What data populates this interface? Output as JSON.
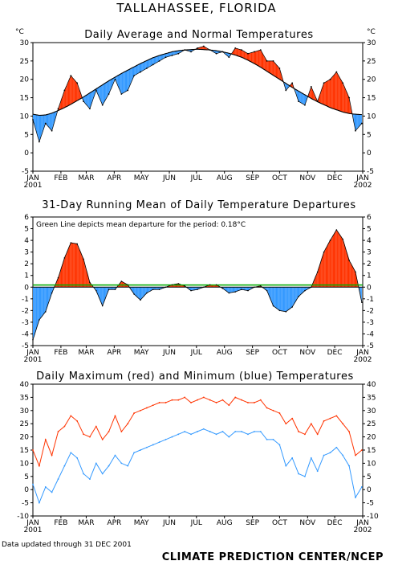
{
  "page": {
    "title": "TALLAHASSEE, FLORIDA",
    "footer_left": "Data updated through 31 DEC 2001",
    "footer_right": "CLIMATE PREDICTION CENTER/NCEP"
  },
  "colors": {
    "warm_fill": "#ff3300",
    "cold_fill": "#3399ff",
    "max_line": "#ff3300",
    "min_line": "#3399ff",
    "mean_line": "#00aa00",
    "normal_line": "#000000"
  },
  "chart_data": [
    {
      "type": "area",
      "title": "Daily Average and Normal Temperatures",
      "ylabel_left": "°C",
      "ylabel_right": "°C",
      "ylim": [
        -5,
        30
      ],
      "yticks": [
        -5,
        0,
        5,
        10,
        15,
        20,
        25,
        30
      ],
      "x_tick_labels": [
        "JAN\n2001",
        "FEB",
        "MAR",
        "APR",
        "MAY",
        "JUN",
        "JUL",
        "AUG",
        "SEP",
        "OCT",
        "NOV",
        "DEC",
        "JAN\n2002"
      ],
      "grid": false,
      "x_day": [
        0,
        7,
        14,
        21,
        28,
        35,
        42,
        49,
        56,
        63,
        70,
        77,
        84,
        91,
        98,
        105,
        112,
        119,
        126,
        133,
        140,
        147,
        154,
        161,
        168,
        175,
        182,
        189,
        196,
        203,
        210,
        217,
        224,
        231,
        238,
        245,
        252,
        259,
        266,
        273,
        280,
        287,
        294,
        301,
        308,
        315,
        322,
        329,
        336,
        343,
        350,
        357,
        364
      ],
      "series": [
        {
          "name": "Daily Average",
          "values": [
            9,
            3,
            8,
            6,
            12,
            17,
            21,
            19,
            14,
            12,
            17,
            13,
            16,
            20,
            16,
            17,
            21,
            22,
            23,
            24,
            25,
            26,
            26.5,
            27,
            28,
            27.5,
            28.5,
            29,
            28,
            27,
            27.5,
            26,
            28.5,
            28,
            27,
            27.5,
            28,
            25,
            25,
            23,
            17,
            19,
            14,
            13,
            18,
            14,
            19,
            20,
            22,
            19,
            15,
            6,
            8
          ]
        },
        {
          "name": "Normal",
          "values": [
            10.5,
            10.2,
            10.3,
            10.8,
            11.5,
            12.3,
            13.2,
            14.2,
            15.2,
            16.3,
            17.4,
            18.5,
            19.6,
            20.6,
            21.6,
            22.5,
            23.4,
            24.3,
            25.1,
            25.9,
            26.5,
            27.0,
            27.5,
            27.8,
            28.0,
            28.1,
            28.2,
            28.1,
            28.0,
            27.8,
            27.5,
            27.1,
            26.6,
            26.0,
            25.2,
            24.3,
            23.3,
            22.2,
            21.1,
            20.0,
            18.9,
            17.8,
            16.8,
            15.8,
            14.8,
            13.9,
            13.1,
            12.3,
            11.7,
            11.1,
            10.7,
            10.5,
            10.4
          ]
        }
      ]
    },
    {
      "type": "area",
      "title": "31-Day Running Mean of Daily Temperature Departures",
      "annotation": "Green Line depicts mean departure for the period: 0.18°C",
      "ylim": [
        -5,
        6
      ],
      "yticks": [
        -5,
        -4,
        -3,
        -2,
        -1,
        0,
        1,
        2,
        3,
        4,
        5,
        6
      ],
      "x_tick_labels": [
        "JAN\n2001",
        "FEB",
        "MAR",
        "APR",
        "MAY",
        "JUN",
        "JUL",
        "AUG",
        "SEP",
        "OCT",
        "NOV",
        "DEC",
        "JAN\n2002"
      ],
      "mean_departure": 0.18,
      "x_day": [
        0,
        7,
        14,
        21,
        28,
        35,
        42,
        49,
        56,
        63,
        70,
        77,
        84,
        91,
        98,
        105,
        112,
        119,
        126,
        133,
        140,
        147,
        154,
        161,
        168,
        175,
        182,
        189,
        196,
        203,
        210,
        217,
        224,
        231,
        238,
        245,
        252,
        259,
        266,
        273,
        280,
        287,
        294,
        301,
        308,
        315,
        322,
        329,
        336,
        343,
        350,
        357,
        364
      ],
      "series": [
        {
          "name": "31-Day Running Mean Departure",
          "values": [
            -4.5,
            -2.8,
            -2.1,
            -0.5,
            0.8,
            2.5,
            3.8,
            3.7,
            2.4,
            0.4,
            -0.3,
            -1.6,
            -0.2,
            -0.2,
            0.5,
            0.2,
            -0.6,
            -1.1,
            -0.5,
            -0.2,
            -0.2,
            0.0,
            0.2,
            0.3,
            0.1,
            -0.3,
            -0.2,
            0.0,
            0.2,
            0.2,
            -0.1,
            -0.5,
            -0.4,
            -0.2,
            -0.3,
            0.0,
            0.1,
            -0.3,
            -1.6,
            -2.0,
            -2.1,
            -1.7,
            -0.8,
            -0.3,
            0.0,
            1.3,
            3.0,
            4.0,
            4.9,
            4.1,
            2.3,
            1.3,
            -1.3
          ]
        }
      ]
    },
    {
      "type": "line",
      "title": "Daily Maximum (red) and Minimum (blue) Temperatures",
      "ylim": [
        -10,
        40
      ],
      "yticks": [
        -10,
        -5,
        0,
        5,
        10,
        15,
        20,
        25,
        30,
        35,
        40
      ],
      "x_tick_labels": [
        "JAN\n2001",
        "FEB",
        "MAR",
        "APR",
        "MAY",
        "JUN",
        "JUL",
        "AUG",
        "SEP",
        "OCT",
        "NOV",
        "DEC",
        "JAN\n2002"
      ],
      "x_day": [
        0,
        7,
        14,
        21,
        28,
        35,
        42,
        49,
        56,
        63,
        70,
        77,
        84,
        91,
        98,
        105,
        112,
        119,
        126,
        133,
        140,
        147,
        154,
        161,
        168,
        175,
        182,
        189,
        196,
        203,
        210,
        217,
        224,
        231,
        238,
        245,
        252,
        259,
        266,
        273,
        280,
        287,
        294,
        301,
        308,
        315,
        322,
        329,
        336,
        343,
        350,
        357,
        364
      ],
      "series": [
        {
          "name": "Maximum",
          "values": [
            15,
            9,
            19,
            13,
            22,
            24,
            28,
            26,
            21,
            20,
            24,
            19,
            22,
            28,
            22,
            25,
            29,
            30,
            31,
            32,
            33,
            33,
            34,
            34,
            35,
            33,
            34,
            35,
            34,
            33,
            34,
            32,
            35,
            34,
            33,
            33,
            34,
            31,
            30,
            29,
            25,
            27,
            22,
            21,
            25,
            21,
            26,
            27,
            28,
            25,
            22,
            13,
            15
          ]
        },
        {
          "name": "Minimum",
          "values": [
            2,
            -5,
            1,
            -1,
            4,
            9,
            14,
            12,
            6,
            4,
            10,
            6,
            9,
            13,
            10,
            9,
            14,
            15,
            16,
            17,
            18,
            19,
            20,
            21,
            22,
            21,
            22,
            23,
            22,
            21,
            22,
            20,
            22,
            22,
            21,
            22,
            22,
            19,
            19,
            17,
            9,
            12,
            6,
            5,
            12,
            7,
            13,
            14,
            16,
            13,
            9,
            -3,
            1
          ]
        }
      ]
    }
  ]
}
